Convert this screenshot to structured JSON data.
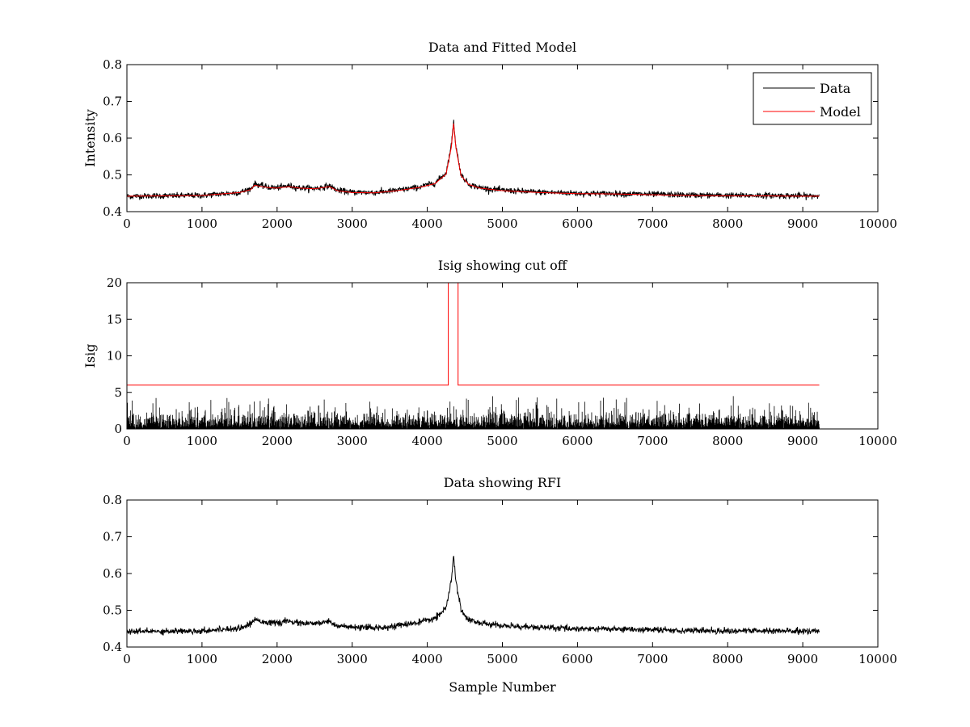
{
  "figure": {
    "background": "#ffffff",
    "data_color": "#000000",
    "model_color": "#ff0000"
  },
  "chart_data": [
    {
      "type": "line",
      "title": "Data and Fitted Model",
      "xlabel": "",
      "ylabel": "Intensity",
      "xlim": [
        0,
        10000
      ],
      "ylim": [
        0.4,
        0.8
      ],
      "xticks": [
        0,
        1000,
        2000,
        3000,
        4000,
        5000,
        6000,
        7000,
        8000,
        9000,
        10000
      ],
      "yticks": [
        0.4,
        0.5,
        0.6,
        0.7,
        0.8
      ],
      "ytick_labels": [
        "0.4",
        "0.5",
        "0.6",
        "0.7",
        "0.8"
      ],
      "legend": {
        "position": "top-right",
        "entries": [
          "Data",
          "Model"
        ]
      },
      "series": [
        {
          "name": "Data",
          "color": "#000000",
          "style": "noisy",
          "noise": 0.004,
          "x": [
            0,
            500,
            1000,
            1500,
            1650,
            1700,
            1800,
            1900,
            2000,
            2150,
            2300,
            2500,
            2700,
            2800,
            3000,
            3300,
            3600,
            3900,
            4100,
            4250,
            4320,
            4350,
            4380,
            4450,
            4550,
            4700,
            5000,
            5500,
            6000,
            6500,
            7000,
            7500,
            8000,
            8500,
            9000,
            9220
          ],
          "y": [
            0.442,
            0.443,
            0.444,
            0.452,
            0.462,
            0.476,
            0.47,
            0.466,
            0.465,
            0.47,
            0.465,
            0.463,
            0.47,
            0.458,
            0.453,
            0.452,
            0.458,
            0.467,
            0.478,
            0.505,
            0.58,
            0.648,
            0.58,
            0.5,
            0.475,
            0.465,
            0.458,
            0.453,
            0.45,
            0.449,
            0.447,
            0.445,
            0.444,
            0.444,
            0.443,
            0.443
          ]
        },
        {
          "name": "Model",
          "color": "#ff0000",
          "style": "line",
          "x": [
            0,
            500,
            1000,
            1500,
            1650,
            1700,
            1800,
            1900,
            2000,
            2150,
            2300,
            2500,
            2700,
            2800,
            3000,
            3300,
            3600,
            3900,
            4100,
            4250,
            4320,
            4350,
            4380,
            4450,
            4550,
            4700,
            5000,
            5500,
            6000,
            6500,
            7000,
            7500,
            8000,
            8500,
            9000,
            9220
          ],
          "y": [
            0.442,
            0.443,
            0.444,
            0.452,
            0.46,
            0.472,
            0.468,
            0.465,
            0.464,
            0.468,
            0.464,
            0.462,
            0.468,
            0.457,
            0.452,
            0.451,
            0.457,
            0.466,
            0.476,
            0.502,
            0.575,
            0.64,
            0.575,
            0.498,
            0.474,
            0.464,
            0.457,
            0.452,
            0.449,
            0.448,
            0.446,
            0.444,
            0.443,
            0.443,
            0.442,
            0.442
          ]
        }
      ]
    },
    {
      "type": "line",
      "title": "Isig showing cut off",
      "xlabel": "",
      "ylabel": "Isig",
      "xlim": [
        0,
        10000
      ],
      "ylim": [
        0,
        20
      ],
      "xticks": [
        0,
        1000,
        2000,
        3000,
        4000,
        5000,
        6000,
        7000,
        8000,
        9000,
        10000
      ],
      "yticks": [
        0,
        5,
        10,
        15,
        20
      ],
      "ytick_labels": [
        "0",
        "5",
        "10",
        "15",
        "20"
      ],
      "series": [
        {
          "name": "Isig",
          "color": "#000000",
          "style": "spikes",
          "x_range": [
            0,
            9220
          ],
          "typical_max": 2.5,
          "peak_max": 4.5
        },
        {
          "name": "Cut off",
          "color": "#ff0000",
          "style": "line",
          "x": [
            0,
            4280,
            4280,
            4410,
            4410,
            9220
          ],
          "y": [
            6,
            6,
            20,
            20,
            6,
            6
          ]
        }
      ]
    },
    {
      "type": "line",
      "title": "Data showing RFI",
      "xlabel": "Sample Number",
      "ylabel": "",
      "xlim": [
        0,
        10000
      ],
      "ylim": [
        0.4,
        0.8
      ],
      "xticks": [
        0,
        1000,
        2000,
        3000,
        4000,
        5000,
        6000,
        7000,
        8000,
        9000,
        10000
      ],
      "yticks": [
        0.4,
        0.5,
        0.6,
        0.7,
        0.8
      ],
      "ytick_labels": [
        "0.4",
        "0.5",
        "0.6",
        "0.7",
        "0.8"
      ],
      "series": [
        {
          "name": "Data",
          "color": "#000000",
          "style": "noisy",
          "noise": 0.004,
          "x": [
            0,
            500,
            1000,
            1500,
            1650,
            1700,
            1800,
            1900,
            2000,
            2150,
            2300,
            2500,
            2700,
            2800,
            3000,
            3300,
            3600,
            3900,
            4100,
            4250,
            4320,
            4350,
            4380,
            4450,
            4550,
            4700,
            5000,
            5500,
            6000,
            6500,
            7000,
            7500,
            8000,
            8500,
            9000,
            9220
          ],
          "y": [
            0.442,
            0.443,
            0.444,
            0.452,
            0.462,
            0.476,
            0.47,
            0.466,
            0.465,
            0.47,
            0.465,
            0.463,
            0.47,
            0.458,
            0.453,
            0.452,
            0.458,
            0.467,
            0.478,
            0.505,
            0.58,
            0.648,
            0.58,
            0.5,
            0.475,
            0.465,
            0.458,
            0.453,
            0.45,
            0.449,
            0.447,
            0.445,
            0.444,
            0.444,
            0.443,
            0.443
          ]
        }
      ]
    }
  ]
}
